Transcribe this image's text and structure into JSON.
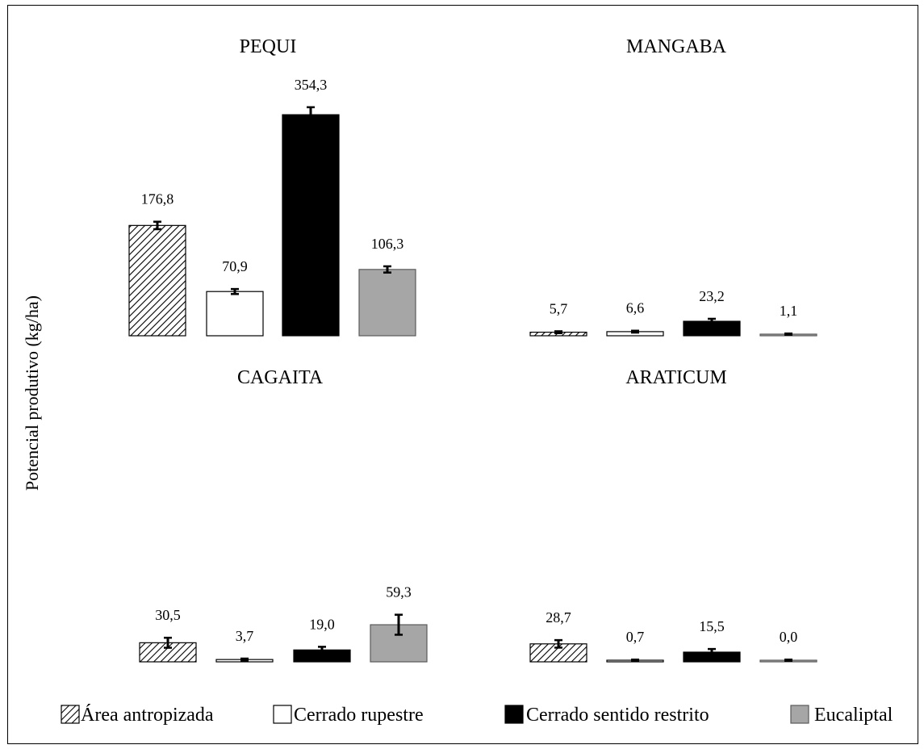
{
  "chart_data": {
    "type": "bar",
    "ylabel": "Potencial produtivo (kg/ha)",
    "legend": {
      "placement": "bottom",
      "entries": [
        {
          "label": "Área antropizada",
          "pattern": "hatch",
          "color": "#ffffff"
        },
        {
          "label": "Cerrado rupestre",
          "pattern": "solid",
          "color": "#ffffff"
        },
        {
          "label": "Cerrado sentido restrito",
          "pattern": "solid",
          "color": "#000000"
        },
        {
          "label": "Eucaliptal",
          "pattern": "solid",
          "color": "#a6a6a6"
        }
      ]
    },
    "panels": [
      {
        "title": "PEQUI",
        "labels": [
          "176,8",
          "70,9",
          "354,3",
          "106,3"
        ],
        "values": [
          176.8,
          70.9,
          354.3,
          106.3
        ],
        "errors": [
          6,
          4,
          12,
          5
        ]
      },
      {
        "title": "MANGABA",
        "labels": [
          "5,7",
          "6,6",
          "23,2",
          "1,1"
        ],
        "values": [
          5.7,
          6.6,
          23.2,
          1.1
        ],
        "errors": [
          1.5,
          1.5,
          4,
          1
        ]
      },
      {
        "title": "CAGAITA",
        "labels": [
          "30,5",
          "3,7",
          "19,0",
          "59,3"
        ],
        "values": [
          30.5,
          3.7,
          19.0,
          59.3
        ],
        "errors": [
          8,
          1.5,
          5,
          16
        ]
      },
      {
        "title": "ARATICUM",
        "labels": [
          "28,7",
          "0,7",
          "15,5",
          "0,0"
        ],
        "values": [
          28.7,
          0.7,
          15.5,
          0.0
        ],
        "errors": [
          6,
          1,
          5,
          1
        ]
      }
    ]
  }
}
